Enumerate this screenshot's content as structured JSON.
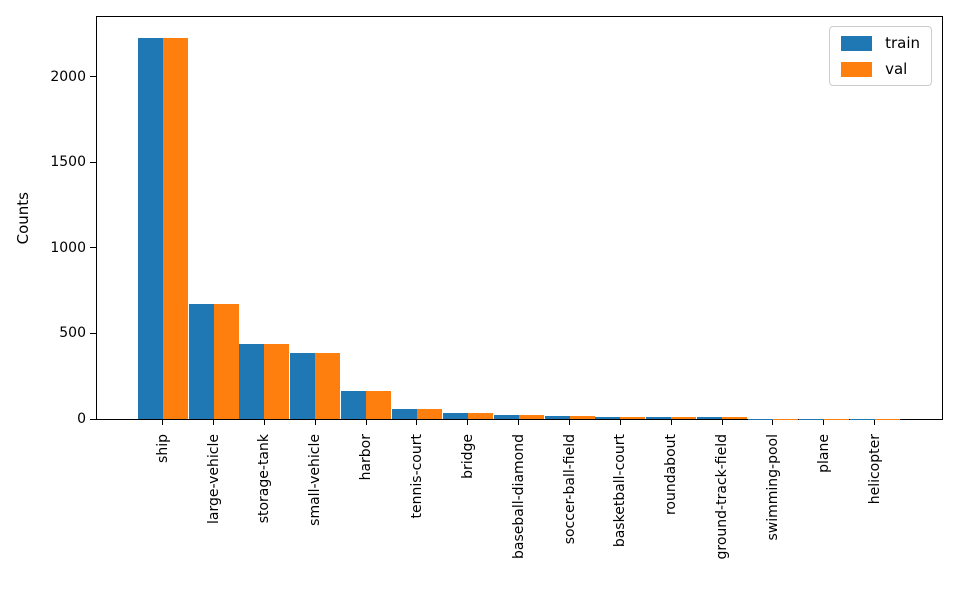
{
  "chart_data": {
    "type": "bar",
    "title": "",
    "xlabel": "",
    "ylabel": "Counts",
    "categories": [
      "ship",
      "large-vehicle",
      "storage-tank",
      "small-vehicle",
      "harbor",
      "tennis-court",
      "bridge",
      "baseball-diamond",
      "soccer-ball-field",
      "basketball-court",
      "roundabout",
      "ground-track-field",
      "swimming-pool",
      "plane",
      "helicopter"
    ],
    "series": [
      {
        "name": "train",
        "color": "#1f77b4",
        "values": [
          2225,
          675,
          440,
          385,
          165,
          58,
          33,
          22,
          18,
          12,
          11,
          12,
          2,
          1,
          1
        ]
      },
      {
        "name": "val",
        "color": "#ff7f0e",
        "values": [
          2225,
          675,
          440,
          385,
          165,
          58,
          33,
          22,
          18,
          12,
          11,
          12,
          2,
          1,
          1
        ]
      }
    ],
    "yticks": [
      0,
      500,
      1000,
      1500,
      2000
    ],
    "ylim": [
      0,
      2350
    ],
    "grid": false,
    "legend_position": "upper right",
    "legend_labels": [
      "train",
      "val"
    ]
  }
}
